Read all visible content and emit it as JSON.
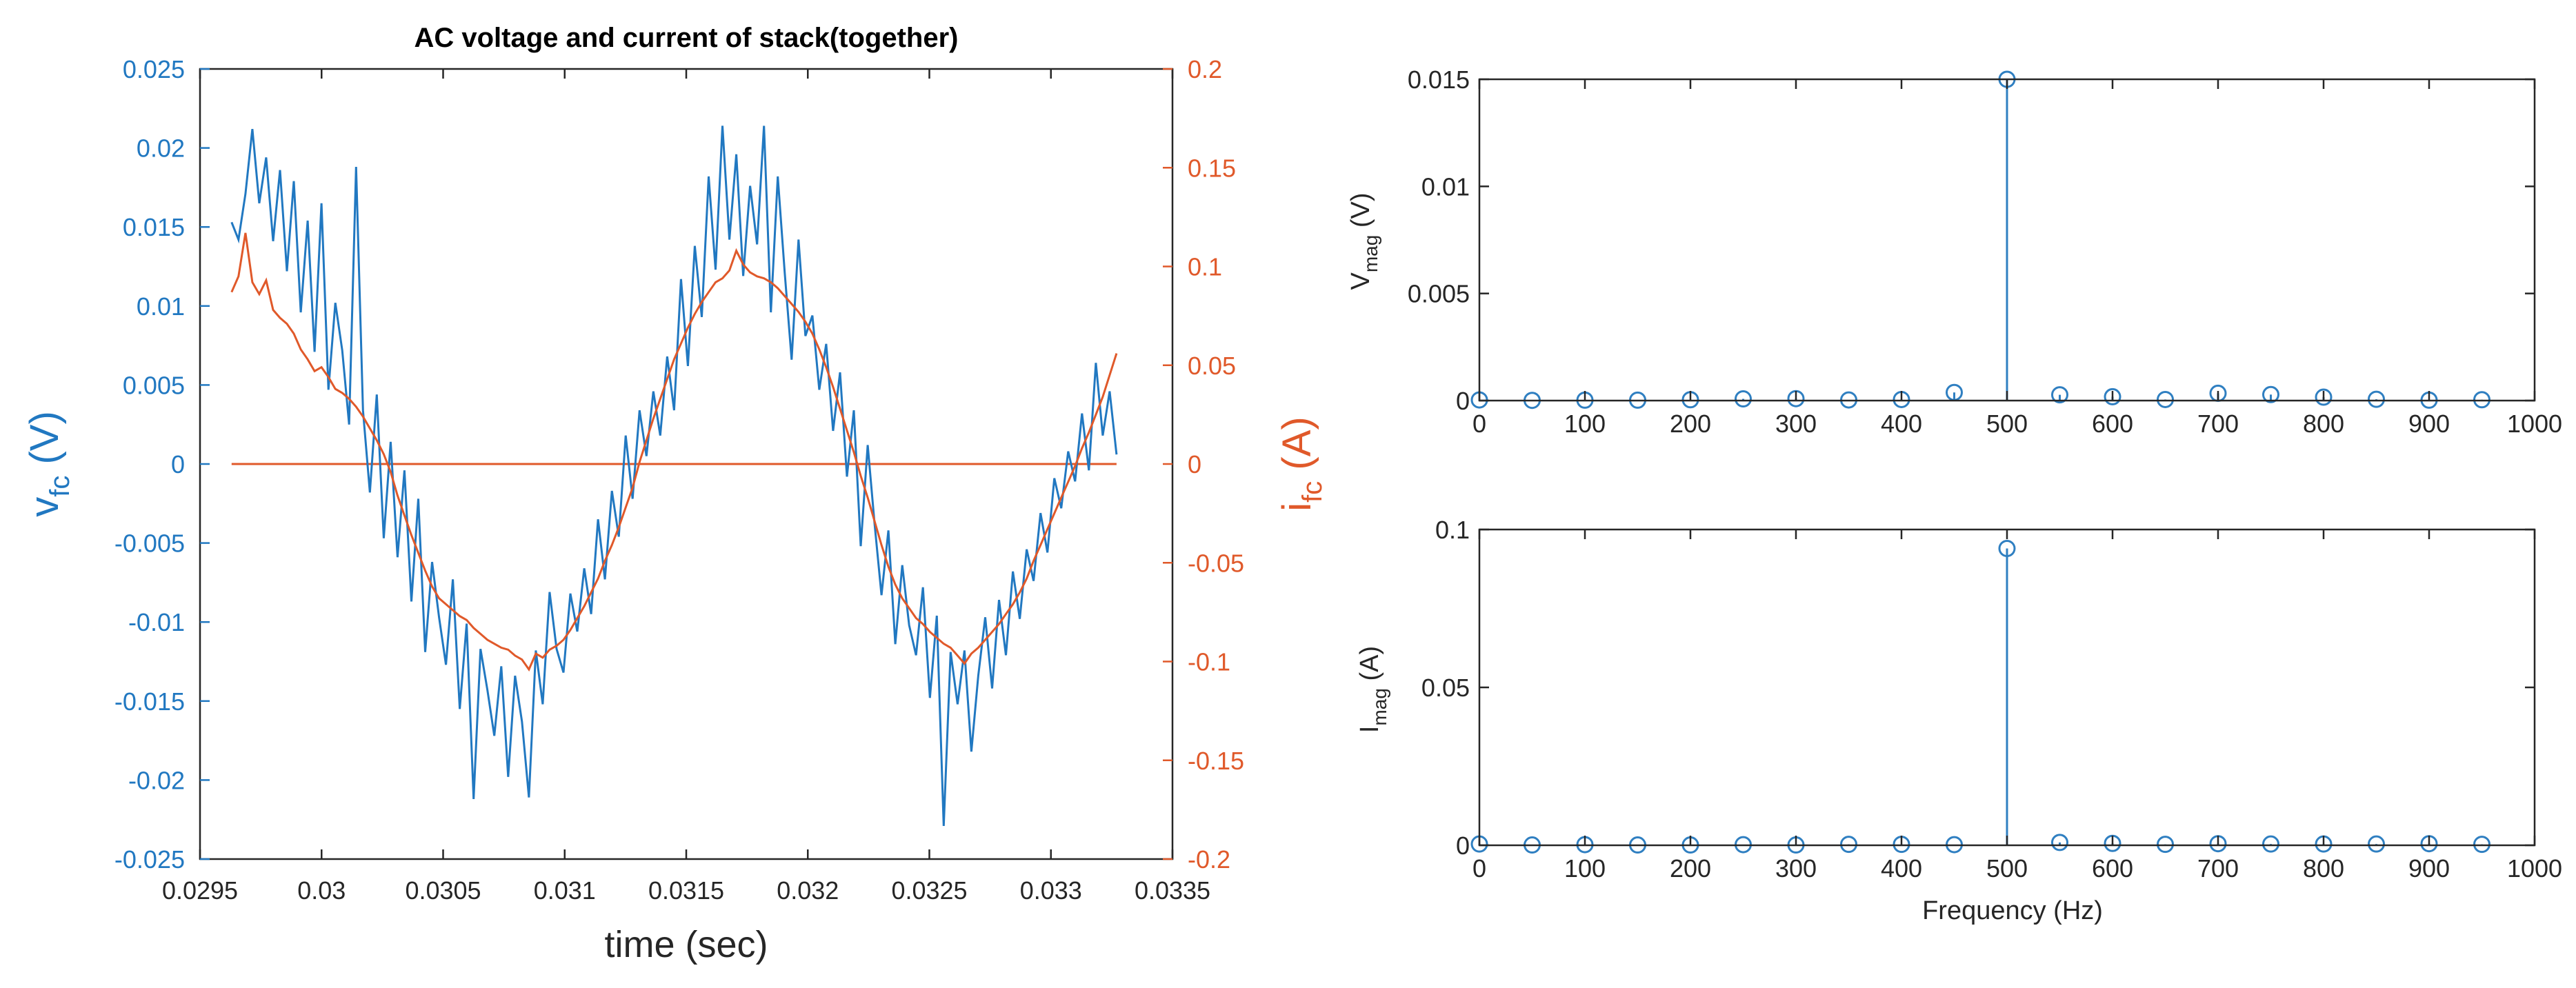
{
  "colors": {
    "voltage": "#2178c1",
    "current": "#e0592a",
    "axis": "#262626",
    "stem": "#2f7fc1"
  },
  "chart_data": [
    {
      "type": "line",
      "title": "AC voltage and current of stack(together)",
      "xlabel": "time (sec)",
      "xlim": [
        0.0296,
        0.0335
      ],
      "x_ticks": [
        "0.0295",
        "0.03",
        "0.0305",
        "0.031",
        "0.0315",
        "0.032",
        "0.0325",
        "0.033",
        "0.0335"
      ],
      "y_left": {
        "label_main": "v",
        "label_sub": "fc",
        "label_unit": " (V)",
        "ylim": [
          -0.025,
          0.025
        ],
        "ticks": [
          "0.025",
          "0.02",
          "0.015",
          "0.01",
          "0.005",
          "0",
          "-0.005",
          "-0.01",
          "-0.015",
          "-0.02",
          "-0.025"
        ]
      },
      "y_right": {
        "label_main": "i",
        "label_sub": "fc",
        "label_unit": " (A)",
        "ylim": [
          -0.2,
          0.2
        ],
        "ticks": [
          "0.2",
          "0.15",
          "0.1",
          "0.05",
          "0",
          "-0.05",
          "-0.1",
          "-0.15",
          "-0.2"
        ]
      },
      "series": [
        {
          "axis": "left",
          "x_start": 0.02963,
          "x_end": 0.03327,
          "values": [
            0.0153,
            0.0142,
            0.0171,
            0.0212,
            0.0165,
            0.0194,
            0.0141,
            0.0186,
            0.0122,
            0.0179,
            0.0096,
            0.0154,
            0.0071,
            0.0165,
            0.0047,
            0.0102,
            0.0072,
            0.0025,
            0.0188,
            0.0034,
            -0.0018,
            0.0044,
            -0.0047,
            0.0014,
            -0.0059,
            -0.0004,
            -0.0087,
            -0.0022,
            -0.0119,
            -0.0062,
            -0.0097,
            -0.0127,
            -0.0073,
            -0.0155,
            -0.0101,
            -0.0212,
            -0.0117,
            -0.0143,
            -0.0172,
            -0.0128,
            -0.0198,
            -0.0134,
            -0.0163,
            -0.0211,
            -0.0118,
            -0.0152,
            -0.0081,
            -0.0117,
            -0.0132,
            -0.0082,
            -0.0106,
            -0.0066,
            -0.0095,
            -0.0035,
            -0.0073,
            -0.0017,
            -0.0046,
            0.0018,
            -0.0022,
            0.0034,
            0.0005,
            0.0046,
            0.0018,
            0.0068,
            0.0034,
            0.0117,
            0.0062,
            0.0138,
            0.0093,
            0.0182,
            0.0123,
            0.0214,
            0.0142,
            0.0196,
            0.0119,
            0.0176,
            0.0139,
            0.0214,
            0.0096,
            0.0182,
            0.0121,
            0.0066,
            0.0142,
            0.0081,
            0.0094,
            0.0047,
            0.0076,
            0.0021,
            0.0058,
            -0.0008,
            0.0034,
            -0.0052,
            0.0012,
            -0.0038,
            -0.0083,
            -0.0042,
            -0.0114,
            -0.0064,
            -0.0102,
            -0.0121,
            -0.0078,
            -0.0148,
            -0.0096,
            -0.0229,
            -0.0119,
            -0.0152,
            -0.0118,
            -0.0182,
            -0.0134,
            -0.0097,
            -0.0142,
            -0.0086,
            -0.0121,
            -0.0068,
            -0.0098,
            -0.0054,
            -0.0074,
            -0.0031,
            -0.0056,
            -0.0009,
            -0.0028,
            0.0008,
            -0.0011,
            0.0032,
            -0.0004,
            0.0064,
            0.0018,
            0.0046,
            0.0006
          ]
        },
        {
          "axis": "right",
          "x_start": 0.02963,
          "x_end": 0.03327,
          "values": [
            0.087,
            0.095,
            0.117,
            0.092,
            0.086,
            0.093,
            0.078,
            0.074,
            0.071,
            0.066,
            0.058,
            0.053,
            0.047,
            0.049,
            0.044,
            0.038,
            0.036,
            0.033,
            0.029,
            0.024,
            0.018,
            0.012,
            0.005,
            -0.004,
            -0.016,
            -0.026,
            -0.036,
            -0.045,
            -0.054,
            -0.062,
            -0.068,
            -0.071,
            -0.074,
            -0.077,
            -0.079,
            -0.083,
            -0.086,
            -0.089,
            -0.091,
            -0.093,
            -0.094,
            -0.097,
            -0.099,
            -0.104,
            -0.096,
            -0.098,
            -0.094,
            -0.092,
            -0.089,
            -0.084,
            -0.078,
            -0.072,
            -0.065,
            -0.058,
            -0.049,
            -0.041,
            -0.032,
            -0.022,
            -0.012,
            0.001,
            0.012,
            0.023,
            0.033,
            0.043,
            0.053,
            0.061,
            0.069,
            0.076,
            0.082,
            0.087,
            0.092,
            0.094,
            0.098,
            0.108,
            0.101,
            0.097,
            0.095,
            0.094,
            0.092,
            0.089,
            0.085,
            0.081,
            0.077,
            0.072,
            0.066,
            0.058,
            0.049,
            0.039,
            0.028,
            0.017,
            0.006,
            -0.006,
            -0.017,
            -0.029,
            -0.041,
            -0.052,
            -0.061,
            -0.068,
            -0.073,
            -0.078,
            -0.081,
            -0.085,
            -0.088,
            -0.091,
            -0.093,
            -0.097,
            -0.101,
            -0.096,
            -0.093,
            -0.089,
            -0.085,
            -0.081,
            -0.076,
            -0.071,
            -0.065,
            -0.058,
            -0.049,
            -0.041,
            -0.033,
            -0.025,
            -0.017,
            -0.009,
            -0.001,
            0.008,
            0.016,
            0.025,
            0.034,
            0.045,
            0.056
          ]
        },
        {
          "axis": "right",
          "x": [
            0.02963,
            0.03327
          ],
          "values": [
            0,
            0
          ]
        }
      ]
    },
    {
      "type": "scatter",
      "xlim": [
        0,
        1000
      ],
      "ylim": [
        0,
        0.015
      ],
      "x_ticks": [
        "0",
        "100",
        "200",
        "300",
        "400",
        "500",
        "600",
        "700",
        "800",
        "900",
        "1000"
      ],
      "y_ticks": [
        "0.015",
        "0.01",
        "0.005",
        "0"
      ],
      "ylabel_main": "V",
      "ylabel_sub": "mag",
      "ylabel_unit": " (V)",
      "x": [
        0,
        50,
        100,
        150,
        200,
        250,
        300,
        350,
        400,
        450,
        500,
        550,
        600,
        650,
        700,
        750,
        800,
        850,
        900,
        950
      ],
      "values": [
        3e-05,
        1e-05,
        2e-05,
        2e-05,
        4e-05,
        8e-05,
        9e-05,
        3e-05,
        5e-05,
        0.00038,
        0.015,
        0.00027,
        0.00018,
        5e-05,
        0.00034,
        0.00028,
        0.00016,
        6e-05,
        2e-05,
        4e-05
      ]
    },
    {
      "type": "scatter",
      "xlim": [
        0,
        1000
      ],
      "ylim": [
        0,
        0.1
      ],
      "x_ticks": [
        "0",
        "100",
        "200",
        "300",
        "400",
        "500",
        "600",
        "700",
        "800",
        "900",
        "1000"
      ],
      "y_ticks": [
        "0.1",
        "0.05",
        "0"
      ],
      "ylabel_main": "I",
      "ylabel_sub": "mag",
      "ylabel_unit": " (A)",
      "xlabel": "Frequency (Hz)",
      "x": [
        0,
        50,
        100,
        150,
        200,
        250,
        300,
        350,
        400,
        450,
        500,
        550,
        600,
        650,
        700,
        750,
        800,
        850,
        900,
        950
      ],
      "values": [
        0.0004,
        0.0001,
        0.0002,
        0.0001,
        0.0001,
        0.0002,
        0.0001,
        0.0003,
        0.0003,
        0.0002,
        0.094,
        0.0009,
        0.0006,
        0.0003,
        0.0005,
        0.0004,
        0.0004,
        0.0004,
        0.0005,
        0.0003
      ]
    }
  ]
}
